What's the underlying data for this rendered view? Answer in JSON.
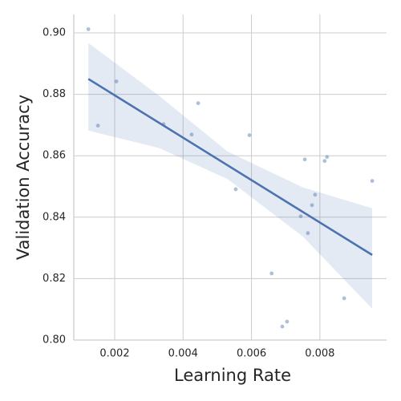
{
  "chart_data": {
    "type": "scatter",
    "xlabel": "Learning Rate",
    "ylabel": "Validation Accuracy",
    "x": [
      0.00123,
      0.00151,
      0.00205,
      0.00343,
      0.00425,
      0.00444,
      0.00554,
      0.00594,
      0.00659,
      0.0069,
      0.00704,
      0.00744,
      0.00756,
      0.00765,
      0.00777,
      0.00786,
      0.00814,
      0.00821,
      0.00871,
      0.00953
    ],
    "series": [
      {
        "color": "#4c72b0",
        "values": [
          0.9012,
          0.8698,
          0.8842,
          0.8703,
          0.8669,
          0.8771,
          0.8491,
          0.8667,
          0.8217,
          0.8044,
          0.806,
          0.8403,
          0.8588,
          0.8348,
          0.8439,
          0.8473,
          0.8583,
          0.8596,
          0.8136,
          0.8518
        ]
      }
    ],
    "fit": {
      "x": [
        0.00123,
        0.00953
      ],
      "y": [
        0.885,
        0.8277
      ]
    },
    "ci": {
      "x": [
        0.00123,
        0.0033,
        0.0053,
        0.0075,
        0.00953
      ],
      "upper": [
        0.8967,
        0.8795,
        0.8614,
        0.8497,
        0.8429
      ],
      "lower": [
        0.8682,
        0.8625,
        0.8524,
        0.8337,
        0.8102
      ]
    },
    "xlim": [
      0.000804,
      0.00995
    ],
    "ylim": [
      0.8,
      0.906
    ],
    "xticks": [
      0.002,
      0.004,
      0.006,
      0.008
    ],
    "yticks": [
      {
        "value": 0.8,
        "label": "0.80"
      },
      0.82,
      0.84,
      0.86,
      0.88,
      {
        "value": 0.9,
        "label": "0.90"
      }
    ],
    "grid": true
  }
}
